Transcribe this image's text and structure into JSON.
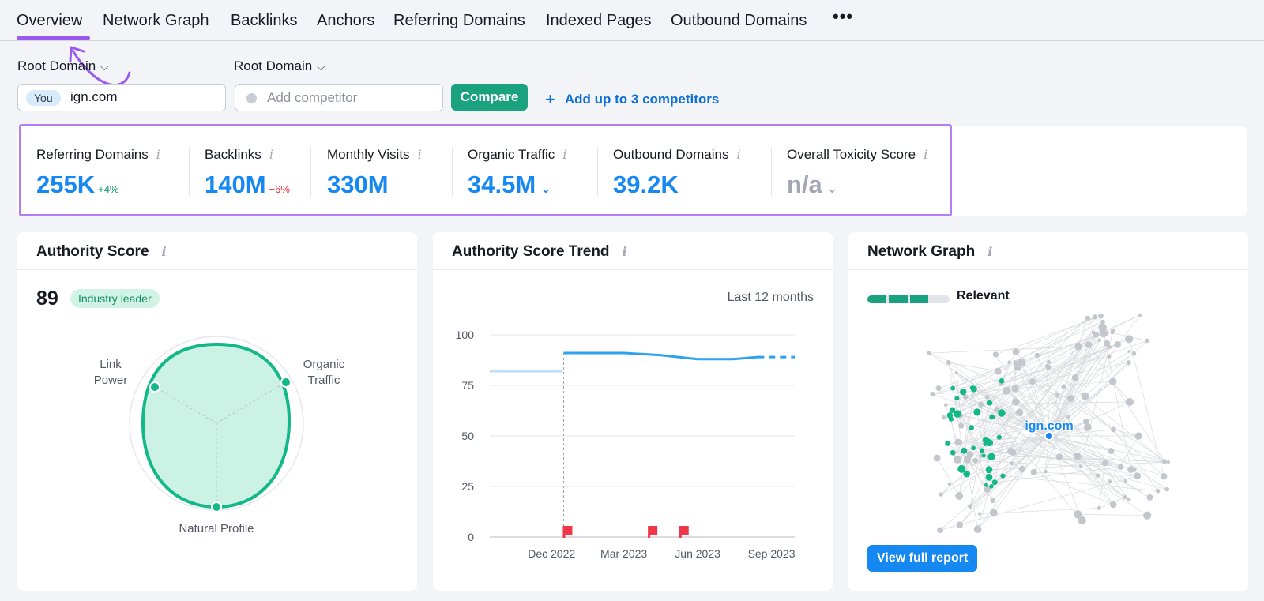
{
  "tabs": {
    "items": [
      {
        "label": "Overview"
      },
      {
        "label": "Network Graph"
      },
      {
        "label": "Backlinks"
      },
      {
        "label": "Anchors"
      },
      {
        "label": "Referring Domains"
      },
      {
        "label": "Indexed Pages"
      },
      {
        "label": "Outbound Domains"
      }
    ],
    "active": "Overview",
    "more_label": "•••"
  },
  "filters": {
    "root_domain_1": "Root Domain",
    "root_domain_2": "Root Domain",
    "you_badge": "You",
    "domain_value": "ign.com",
    "competitor_placeholder": "Add competitor",
    "compare_label": "Compare",
    "add_competitors_label": "Add up to 3 competitors"
  },
  "metrics": [
    {
      "label": "Referring Domains",
      "value": "255K",
      "delta": "+4%",
      "delta_dir": "up"
    },
    {
      "label": "Backlinks",
      "value": "140M",
      "delta": "−6%",
      "delta_dir": "down"
    },
    {
      "label": "Monthly Visits",
      "value": "330M"
    },
    {
      "label": "Organic Traffic",
      "value": "34.5M"
    },
    {
      "label": "Outbound Domains",
      "value": "39.2K"
    },
    {
      "label": "Overall Toxicity Score",
      "value": "n/a"
    }
  ],
  "authority": {
    "title": "Authority Score",
    "score": "89",
    "badge": "Industry leader",
    "axes": {
      "link_power_1": "Link",
      "link_power_2": "Power",
      "organic_1": "Organic",
      "organic_2": "Traffic",
      "natural": "Natural Profile"
    }
  },
  "trend": {
    "title": "Authority Score Trend",
    "period": "Last 12 months"
  },
  "network": {
    "title": "Network Graph",
    "relevance_label": "Relevant",
    "relevance_level": 0.75,
    "center_label": "ign.com",
    "view_report_label": "View full report"
  },
  "chart_data": {
    "type": "line",
    "ylim": [
      0,
      100
    ],
    "yticks": [
      0,
      25,
      50,
      75,
      100
    ],
    "x_tick_labels": [
      "Dec 2022",
      "Mar 2023",
      "Jun 2023",
      "Sep 2023"
    ],
    "series": [
      {
        "values": [
          {
            "date": "2022-09-15",
            "y": 82
          },
          {
            "date": "2022-12-15",
            "y": 82
          },
          {
            "date": "2022-12-16",
            "y": 91
          },
          {
            "date": "2023-03-01",
            "y": 91
          },
          {
            "date": "2023-04-15",
            "y": 90
          },
          {
            "date": "2023-06-01",
            "y": 88
          },
          {
            "date": "2023-07-15",
            "y": 88
          },
          {
            "date": "2023-08-15",
            "y": 89
          },
          {
            "date": "2023-09-30",
            "y": 89
          }
        ]
      }
    ],
    "event_markers": [
      "2022-12-16",
      "2023-04-01",
      "2023-05-10"
    ],
    "colors": {
      "line": "#2ea2ee",
      "previous": "#bfe0f8",
      "marker": "#f0374a"
    }
  },
  "colors": {
    "accent_blue": "#1688f2",
    "accent_green": "#1aa17e",
    "highlight_purple": "#b07ef5"
  }
}
